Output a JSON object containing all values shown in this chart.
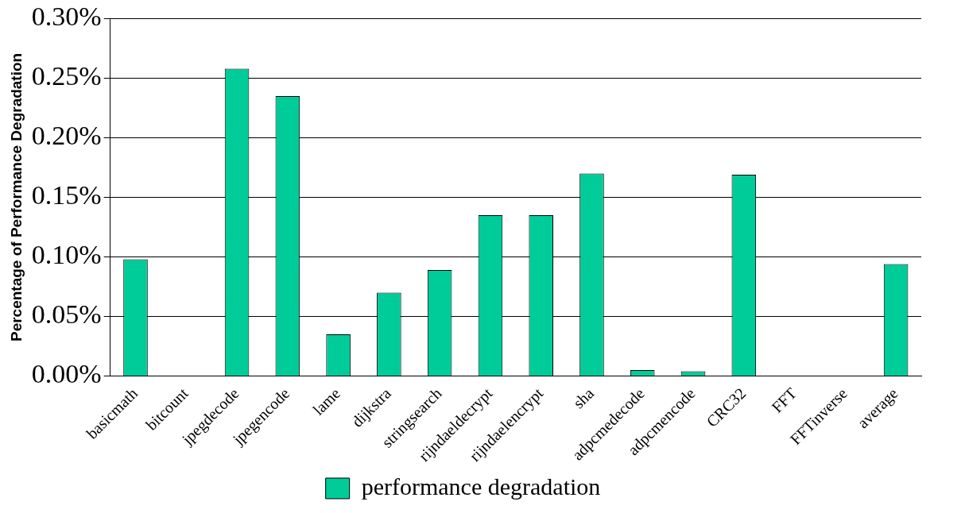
{
  "chart_data": {
    "type": "bar",
    "ylabel": "Percentage of Performance Degradation",
    "categories": [
      "basicmath",
      "bitcount",
      "jpegdecode",
      "jpegencode",
      "lame",
      "dijkstra",
      "stringsearch",
      "rijndaeldecrypt",
      "rijndaelencrypt",
      "sha",
      "adpcmedecode",
      "adpcmencode",
      "CRC32",
      "FFT",
      "FFTinverse",
      "average"
    ],
    "series": [
      {
        "name": "performance degradation",
        "color": "#00cc99",
        "values": [
          0.098,
          0,
          0.258,
          0.235,
          0.035,
          0.07,
          0.089,
          0.135,
          0.135,
          0.17,
          0.005,
          0.004,
          0.169,
          0,
          0,
          0.094
        ]
      }
    ],
    "ylim": [
      0,
      0.3
    ],
    "yticks": [
      {
        "value": 0,
        "label": "0.00%"
      },
      {
        "value": 0.05,
        "label": "0.05%"
      },
      {
        "value": 0.1,
        "label": "0.10%"
      },
      {
        "value": 0.15,
        "label": "0.15%"
      },
      {
        "value": 0.2,
        "label": "0.20%"
      },
      {
        "value": 0.25,
        "label": "0.25%"
      },
      {
        "value": 0.3,
        "label": "0.30%"
      }
    ],
    "grid": "y",
    "legend": "bottom"
  }
}
